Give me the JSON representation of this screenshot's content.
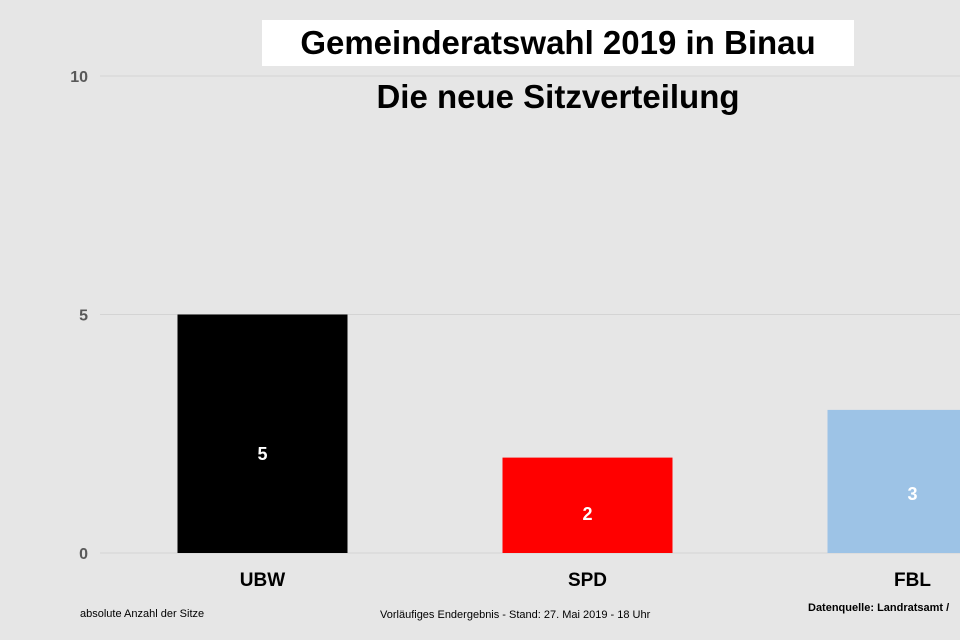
{
  "chart_data": {
    "type": "bar",
    "title": "Gemeinderatswahl 2019 in Binau",
    "subtitle": "Die neue Sitzverteilung",
    "categories": [
      "UBW",
      "SPD",
      "FBL"
    ],
    "values": [
      5,
      2,
      3
    ],
    "data_labels": [
      "5",
      "2",
      "3"
    ],
    "colors": [
      "#000000",
      "#ff0000",
      "#9dc3e6"
    ],
    "ylim": [
      0,
      10
    ],
    "yticks": [
      0,
      5,
      10
    ],
    "ytick_labels": [
      "0",
      "5",
      "10"
    ],
    "grid": true,
    "legend": "none"
  },
  "footer": {
    "left": "absolute Anzahl der Sitze",
    "middle": "Vorläufiges Endergebnis - Stand: 27. Mai 2019  - 18 Uhr",
    "right": "Datenquelle: Landratsamt /"
  }
}
